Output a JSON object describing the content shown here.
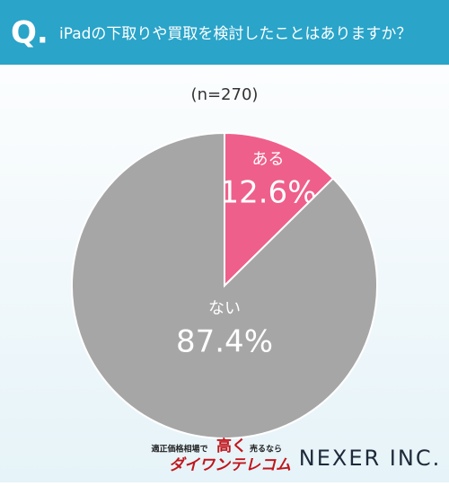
{
  "header": {
    "badge": "Q.",
    "question": "iPadの下取りや買取を検討したことはありますか？"
  },
  "chart_data": {
    "type": "pie",
    "subtitle": "(n=270)",
    "categories": [
      "ある",
      "ない"
    ],
    "values": [
      12.6,
      87.4
    ],
    "value_labels": [
      "12.6%",
      "87.4%"
    ],
    "colors": [
      "#ef5f8b",
      "#a6a6a6"
    ]
  },
  "footer": {
    "tagline": "適正価格相場で",
    "highlight": "高く",
    "tagline2": "売るなら",
    "brand": "ダイワンテレコム",
    "company": "NEXER INC."
  }
}
